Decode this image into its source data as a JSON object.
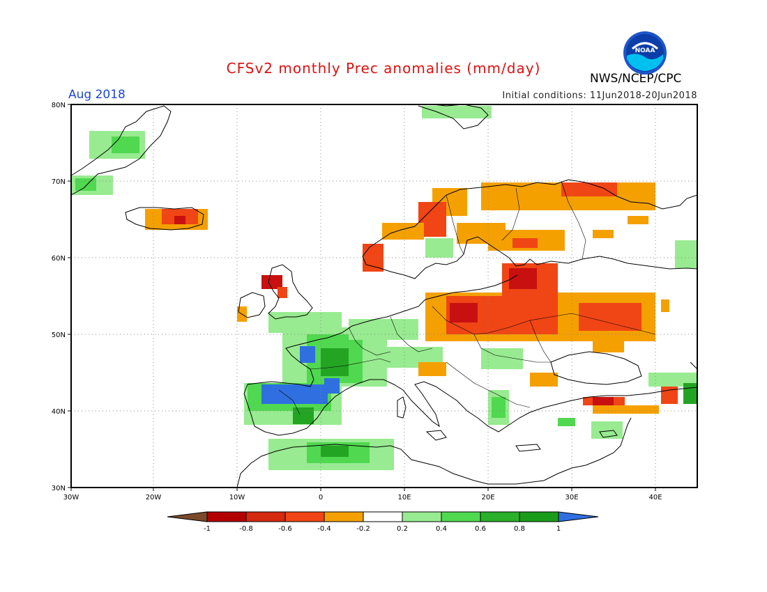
{
  "header": {
    "title": "CFSv2 monthly Prec anomalies (mm/day)",
    "month": "Aug 2018",
    "initial_conditions": "Initial conditions: 11Jun2018-20Jun2018",
    "agency": "NWS/NCEP/CPC",
    "logo_text": "NOAA"
  },
  "map": {
    "projection": "lat-lon",
    "lon_range": [
      -30,
      45
    ],
    "lat_range": [
      30,
      80
    ],
    "lat_labels": [
      "80N",
      "70N",
      "60N",
      "50N",
      "40N",
      "30N"
    ],
    "lon_labels": [
      "30W",
      "20W",
      "10W",
      "0",
      "10E",
      "20E",
      "30E",
      "40E"
    ],
    "grid": "dotted"
  },
  "legend": {
    "tick_labels": [
      "-1",
      "-0.8",
      "-0.6",
      "-0.4",
      "-0.2",
      "0.2",
      "0.4",
      "0.6",
      "0.8",
      "1"
    ],
    "colors": [
      "#7b4a2a",
      "#b30000",
      "#d42a10",
      "#f04515",
      "#f4a000",
      "#ffffff",
      "#98eb90",
      "#50d850",
      "#2ab02a",
      "#1a9c1a",
      "#2f6fe0"
    ]
  },
  "colors": {
    "dry_strong": "#c81010",
    "dry_mid": "#f04515",
    "dry_light": "#f4a000",
    "wet_light": "#98eb90",
    "wet_mid": "#50d850",
    "wet_strong": "#23a423",
    "wet_max": "#2f6fe0"
  }
}
